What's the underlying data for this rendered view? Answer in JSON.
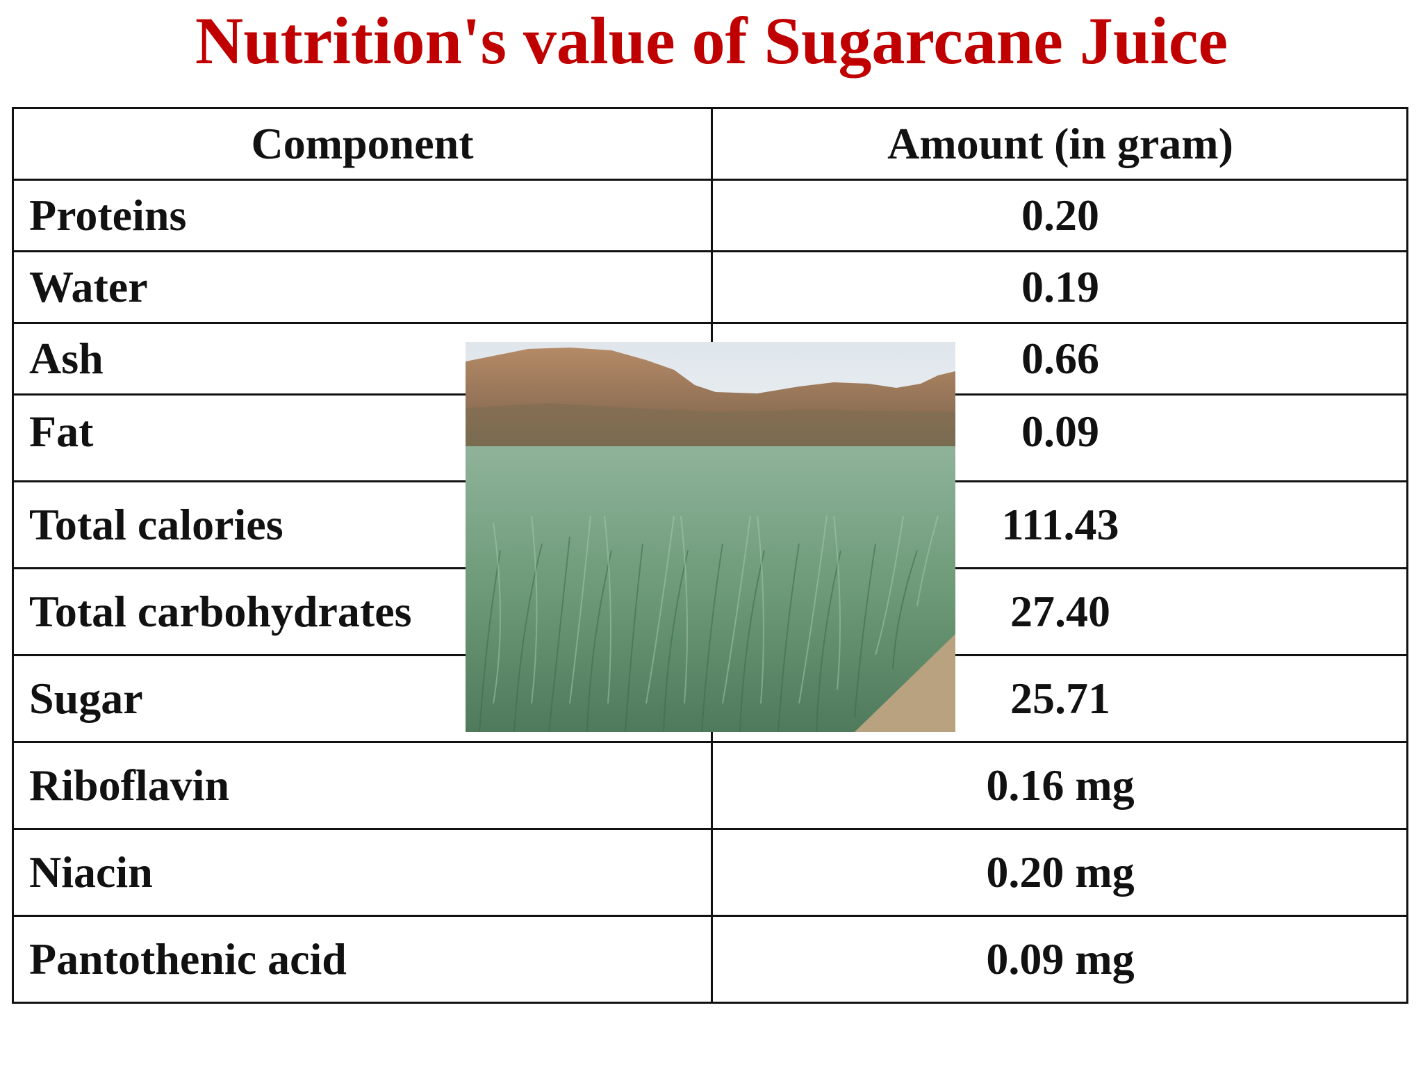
{
  "title": "Nutrition's value of Sugarcane Juice",
  "table": {
    "headers": {
      "component": "Component",
      "amount": "Amount (in gram)"
    },
    "rows": [
      {
        "component": "Proteins",
        "amount": "0.20"
      },
      {
        "component": "Water",
        "amount": "0.19"
      },
      {
        "component": "Ash",
        "amount": "0.66"
      },
      {
        "component": "Fat",
        "amount": "0.09"
      },
      {
        "component": "Total calories",
        "amount": "111.43"
      },
      {
        "component": "Total carbohydrates",
        "amount": "27.40"
      },
      {
        "component": "Sugar",
        "amount": "25.71"
      },
      {
        "component": "Riboflavin",
        "amount": "0.16 mg"
      },
      {
        "component": "Niacin",
        "amount": "0.20 mg"
      },
      {
        "component": "Pantothenic acid",
        "amount": "0.09 mg"
      }
    ]
  },
  "photo": {
    "subject": "sugarcane-field-photo",
    "colors": {
      "sky": "#e6ebef",
      "hills": "#a97e5b",
      "crop": "#6f9a78",
      "soil": "#b8a27f"
    }
  },
  "colors": {
    "title": "#c00000",
    "text": "#111111",
    "border": "#111111",
    "background": "#ffffff"
  }
}
